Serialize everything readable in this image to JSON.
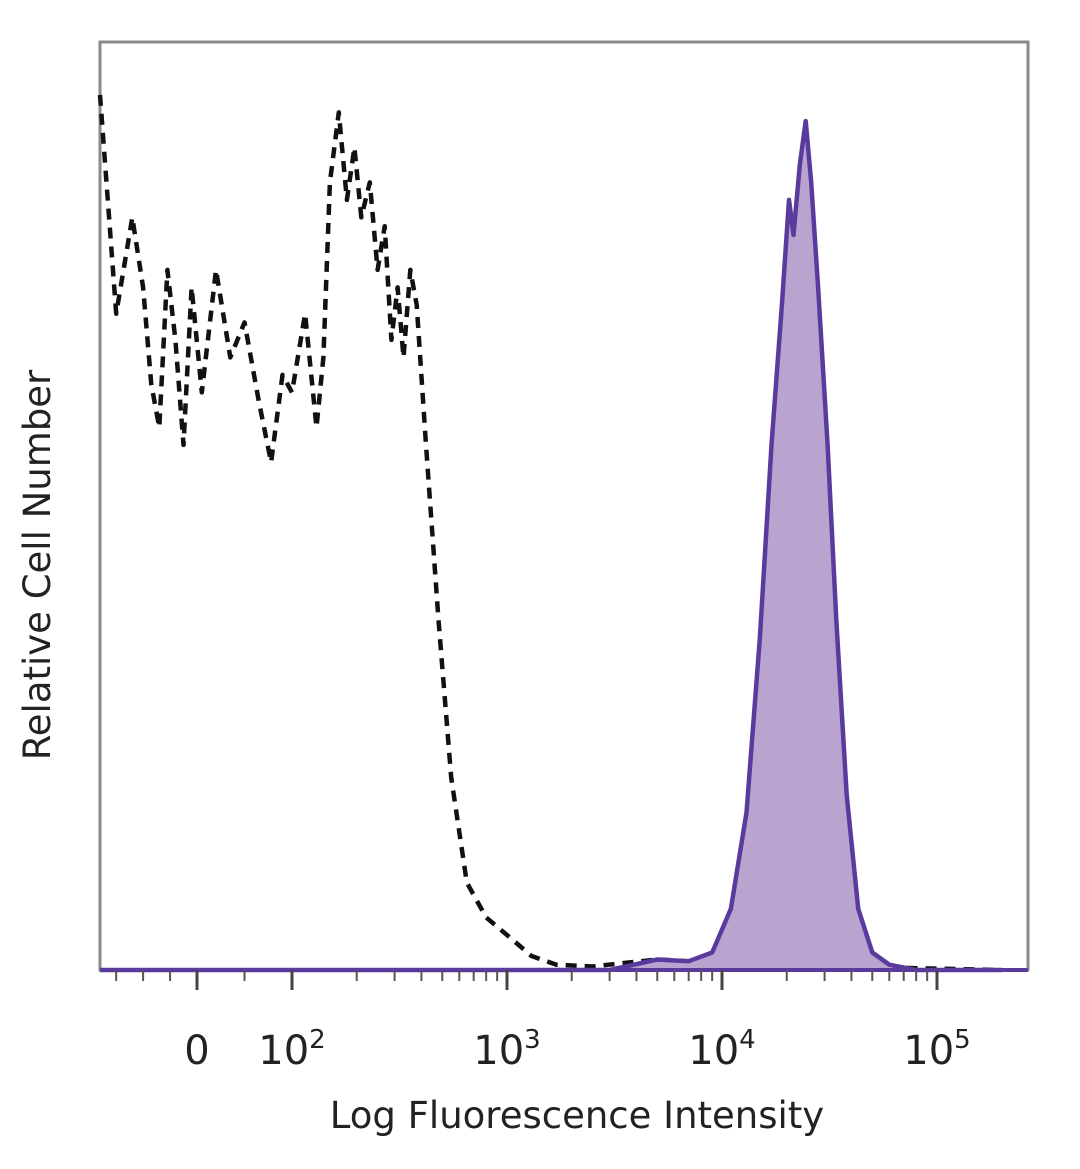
{
  "chart_data": {
    "type": "area",
    "xlabel": "Log Fluorescence Intensity",
    "ylabel": "Relative Cell Number",
    "x_scale": "biexponential (log above 10^2)",
    "x_tick_labels": [
      {
        "value": 0,
        "base": "0",
        "exp": ""
      },
      {
        "value": 100,
        "base": "10",
        "exp": "2"
      },
      {
        "value": 1000,
        "base": "10",
        "exp": "3"
      },
      {
        "value": 10000,
        "base": "10",
        "exp": "4"
      },
      {
        "value": 100000,
        "base": "10",
        "exp": "5"
      }
    ],
    "y_range": [
      0,
      1
    ],
    "grid": false,
    "legend": "none",
    "series": [
      {
        "style": "dashed",
        "color": "#111111",
        "points": [
          [
            -180,
            1.0
          ],
          [
            -150,
            0.75
          ],
          [
            -120,
            0.86
          ],
          [
            -100,
            0.78
          ],
          [
            -85,
            0.67
          ],
          [
            -70,
            0.62
          ],
          [
            -55,
            0.8
          ],
          [
            -40,
            0.72
          ],
          [
            -25,
            0.6
          ],
          [
            -10,
            0.78
          ],
          [
            5,
            0.66
          ],
          [
            20,
            0.8
          ],
          [
            35,
            0.7
          ],
          [
            50,
            0.74
          ],
          [
            65,
            0.65
          ],
          [
            78,
            0.58
          ],
          [
            90,
            0.68
          ],
          [
            100,
            0.66
          ],
          [
            115,
            0.75
          ],
          [
            130,
            0.62
          ],
          [
            140,
            0.7
          ],
          [
            150,
            0.9
          ],
          [
            165,
            0.98
          ],
          [
            180,
            0.88
          ],
          [
            195,
            0.94
          ],
          [
            210,
            0.86
          ],
          [
            230,
            0.9
          ],
          [
            250,
            0.8
          ],
          [
            270,
            0.85
          ],
          [
            290,
            0.72
          ],
          [
            310,
            0.78
          ],
          [
            330,
            0.7
          ],
          [
            355,
            0.8
          ],
          [
            380,
            0.76
          ],
          [
            420,
            0.6
          ],
          [
            480,
            0.4
          ],
          [
            550,
            0.22
          ],
          [
            650,
            0.1
          ],
          [
            800,
            0.06
          ],
          [
            1000,
            0.04
          ],
          [
            1300,
            0.016
          ],
          [
            1700,
            0.006
          ],
          [
            2500,
            0.004
          ],
          [
            3500,
            0.008
          ],
          [
            5000,
            0.012
          ],
          [
            7000,
            0.01
          ],
          [
            10000,
            0.015
          ],
          [
            15000,
            0.01
          ],
          [
            30000,
            0.006
          ],
          [
            80000,
            0.002
          ],
          [
            200000,
            0.0
          ]
        ]
      },
      {
        "style": "filled",
        "color": "#5b3a9e",
        "fill": "#b9a4cf",
        "points": [
          [
            -180,
            0.0
          ],
          [
            3000,
            0.0
          ],
          [
            5000,
            0.012
          ],
          [
            7000,
            0.01
          ],
          [
            9000,
            0.02
          ],
          [
            11000,
            0.07
          ],
          [
            13000,
            0.18
          ],
          [
            15000,
            0.38
          ],
          [
            17000,
            0.6
          ],
          [
            19000,
            0.76
          ],
          [
            20500,
            0.88
          ],
          [
            21500,
            0.84
          ],
          [
            23000,
            0.92
          ],
          [
            24500,
            0.97
          ],
          [
            26000,
            0.9
          ],
          [
            28000,
            0.78
          ],
          [
            31000,
            0.6
          ],
          [
            34000,
            0.4
          ],
          [
            38000,
            0.2
          ],
          [
            43000,
            0.07
          ],
          [
            50000,
            0.02
          ],
          [
            60000,
            0.006
          ],
          [
            80000,
            0.0
          ],
          [
            200000,
            0.0
          ]
        ]
      }
    ]
  }
}
